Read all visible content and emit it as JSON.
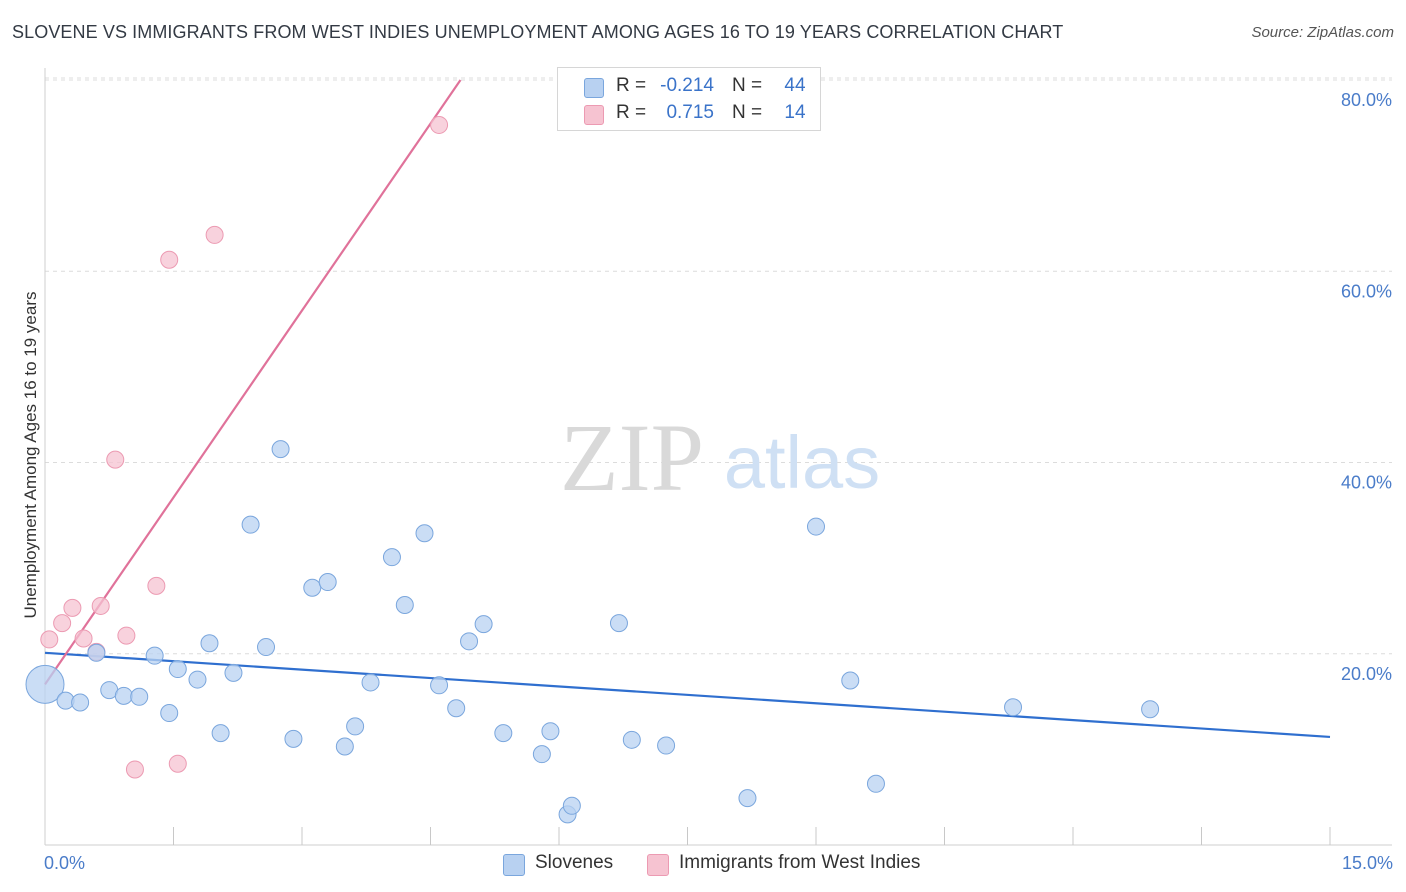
{
  "header": {
    "title": "SLOVENE VS IMMIGRANTS FROM WEST INDIES UNEMPLOYMENT AMONG AGES 16 TO 19 YEARS CORRELATION CHART",
    "source": "Source: ZipAtlas.com"
  },
  "watermark": {
    "zip": "ZIP",
    "atlas": "atlas"
  },
  "colors": {
    "blue_fill": "#b8d1f1",
    "blue_stroke": "#7aa6dd",
    "blue_line": "#2f6fcf",
    "pink_fill": "#f6c3d1",
    "pink_stroke": "#ec9ab2",
    "pink_line": "#e0729a",
    "grid": "#dcdcdc",
    "tick_text": "#4a7cc9"
  },
  "legend": {
    "rows": [
      {
        "r_label": "R =",
        "r_value": "-0.214",
        "n_label": "N =",
        "n_value": "44"
      },
      {
        "r_label": "R =",
        "r_value": "0.715",
        "n_label": "N =",
        "n_value": "14"
      }
    ]
  },
  "bottom_legend": {
    "series1": "Slovenes",
    "series2": "Immigrants from West Indies"
  },
  "chart_data": {
    "type": "scatter",
    "title": "SLOVENE VS IMMIGRANTS FROM WEST INDIES UNEMPLOYMENT AMONG AGES 16 TO 19 YEARS CORRELATION CHART",
    "xlabel": "",
    "ylabel": "Unemployment Among Ages 16 to 19 years",
    "xlim": [
      0,
      15
    ],
    "ylim": [
      0,
      80
    ],
    "x_tick_labels": [
      "0.0%",
      "15.0%"
    ],
    "y_ticks": [
      20,
      40,
      60,
      80
    ],
    "y_tick_labels": [
      "20.0%",
      "40.0%",
      "60.0%",
      "80.0%"
    ],
    "legend_position": "top-center",
    "series": [
      {
        "name": "Slovenes",
        "R": -0.214,
        "N": 44,
        "trend": {
          "x": [
            0.0,
            15.0
          ],
          "y": [
            20.1,
            11.3
          ]
        },
        "points": [
          {
            "x": 0.0,
            "y": 16.8,
            "big": true
          },
          {
            "x": 0.24,
            "y": 15.1
          },
          {
            "x": 0.41,
            "y": 14.9
          },
          {
            "x": 0.6,
            "y": 20.1
          },
          {
            "x": 0.75,
            "y": 16.2
          },
          {
            "x": 0.92,
            "y": 15.6
          },
          {
            "x": 1.1,
            "y": 15.5
          },
          {
            "x": 1.28,
            "y": 19.8
          },
          {
            "x": 1.45,
            "y": 13.8
          },
          {
            "x": 1.55,
            "y": 18.4
          },
          {
            "x": 1.78,
            "y": 17.3
          },
          {
            "x": 1.92,
            "y": 21.1
          },
          {
            "x": 2.05,
            "y": 11.7
          },
          {
            "x": 2.2,
            "y": 18.0
          },
          {
            "x": 2.4,
            "y": 33.5
          },
          {
            "x": 2.58,
            "y": 20.7
          },
          {
            "x": 2.75,
            "y": 41.4
          },
          {
            "x": 2.9,
            "y": 11.1
          },
          {
            "x": 3.12,
            "y": 26.9
          },
          {
            "x": 3.3,
            "y": 27.5
          },
          {
            "x": 3.5,
            "y": 10.3
          },
          {
            "x": 3.62,
            "y": 12.4
          },
          {
            "x": 3.8,
            "y": 17.0
          },
          {
            "x": 4.05,
            "y": 30.1
          },
          {
            "x": 4.2,
            "y": 25.1
          },
          {
            "x": 4.43,
            "y": 32.6
          },
          {
            "x": 4.6,
            "y": 16.7
          },
          {
            "x": 4.8,
            "y": 14.3
          },
          {
            "x": 4.95,
            "y": 21.3
          },
          {
            "x": 5.12,
            "y": 23.1
          },
          {
            "x": 5.35,
            "y": 11.7
          },
          {
            "x": 5.8,
            "y": 9.5
          },
          {
            "x": 5.9,
            "y": 11.9
          },
          {
            "x": 6.1,
            "y": 3.2
          },
          {
            "x": 6.15,
            "y": 4.1
          },
          {
            "x": 6.7,
            "y": 23.2
          },
          {
            "x": 6.85,
            "y": 11.0
          },
          {
            "x": 7.25,
            "y": 10.4
          },
          {
            "x": 8.2,
            "y": 4.9
          },
          {
            "x": 9.0,
            "y": 33.3
          },
          {
            "x": 9.4,
            "y": 17.2
          },
          {
            "x": 9.7,
            "y": 6.4
          },
          {
            "x": 11.3,
            "y": 14.4
          },
          {
            "x": 12.9,
            "y": 14.2
          }
        ]
      },
      {
        "name": "Immigrants from West Indies",
        "R": 0.715,
        "N": 14,
        "trend": {
          "x": [
            0.0,
            4.85
          ],
          "y": [
            16.8,
            80.0
          ]
        },
        "points": [
          {
            "x": 0.05,
            "y": 21.5
          },
          {
            "x": 0.2,
            "y": 23.2
          },
          {
            "x": 0.32,
            "y": 24.8
          },
          {
            "x": 0.45,
            "y": 21.6
          },
          {
            "x": 0.6,
            "y": 20.2
          },
          {
            "x": 0.65,
            "y": 25.0
          },
          {
            "x": 0.82,
            "y": 40.3
          },
          {
            "x": 0.95,
            "y": 21.9
          },
          {
            "x": 1.05,
            "y": 7.9
          },
          {
            "x": 1.3,
            "y": 27.1
          },
          {
            "x": 1.45,
            "y": 61.2
          },
          {
            "x": 1.55,
            "y": 8.5
          },
          {
            "x": 1.98,
            "y": 63.8
          },
          {
            "x": 4.6,
            "y": 75.3
          }
        ]
      }
    ]
  }
}
